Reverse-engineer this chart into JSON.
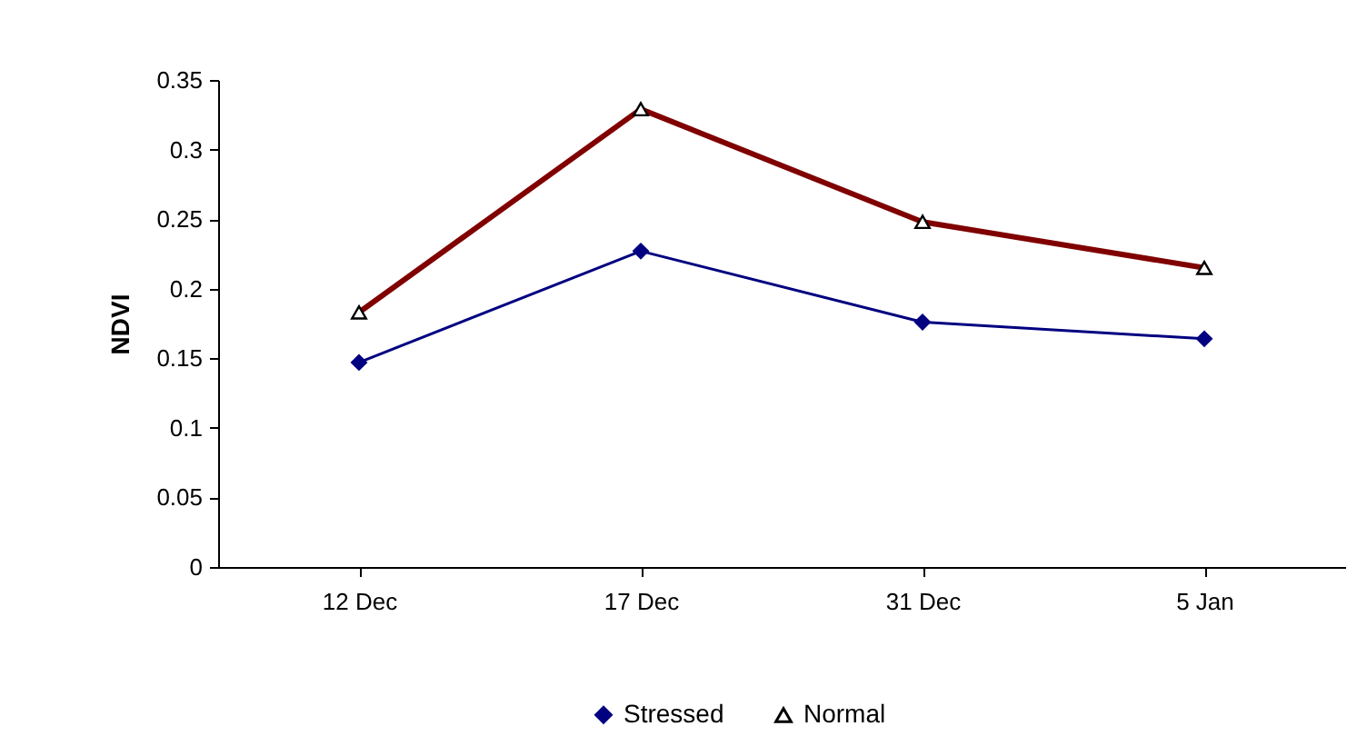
{
  "chart_data": {
    "type": "line",
    "ylabel": "NDVI",
    "categories": [
      "12 Dec",
      "17 Dec",
      "31 Dec",
      "5 Jan"
    ],
    "series": [
      {
        "name": "Stressed",
        "color": "#000080",
        "marker": "diamond",
        "values": [
          0.147,
          0.227,
          0.176,
          0.164
        ]
      },
      {
        "name": "Normal",
        "color": "#800000",
        "marker": "triangle",
        "values": [
          0.183,
          0.329,
          0.248,
          0.215
        ]
      }
    ],
    "ylim": [
      0,
      0.35
    ],
    "yticks": [
      0,
      0.05,
      0.1,
      0.15,
      0.2,
      0.25,
      0.3,
      0.35
    ],
    "grid": false,
    "legend": "bottom",
    "line_style": "solid"
  }
}
